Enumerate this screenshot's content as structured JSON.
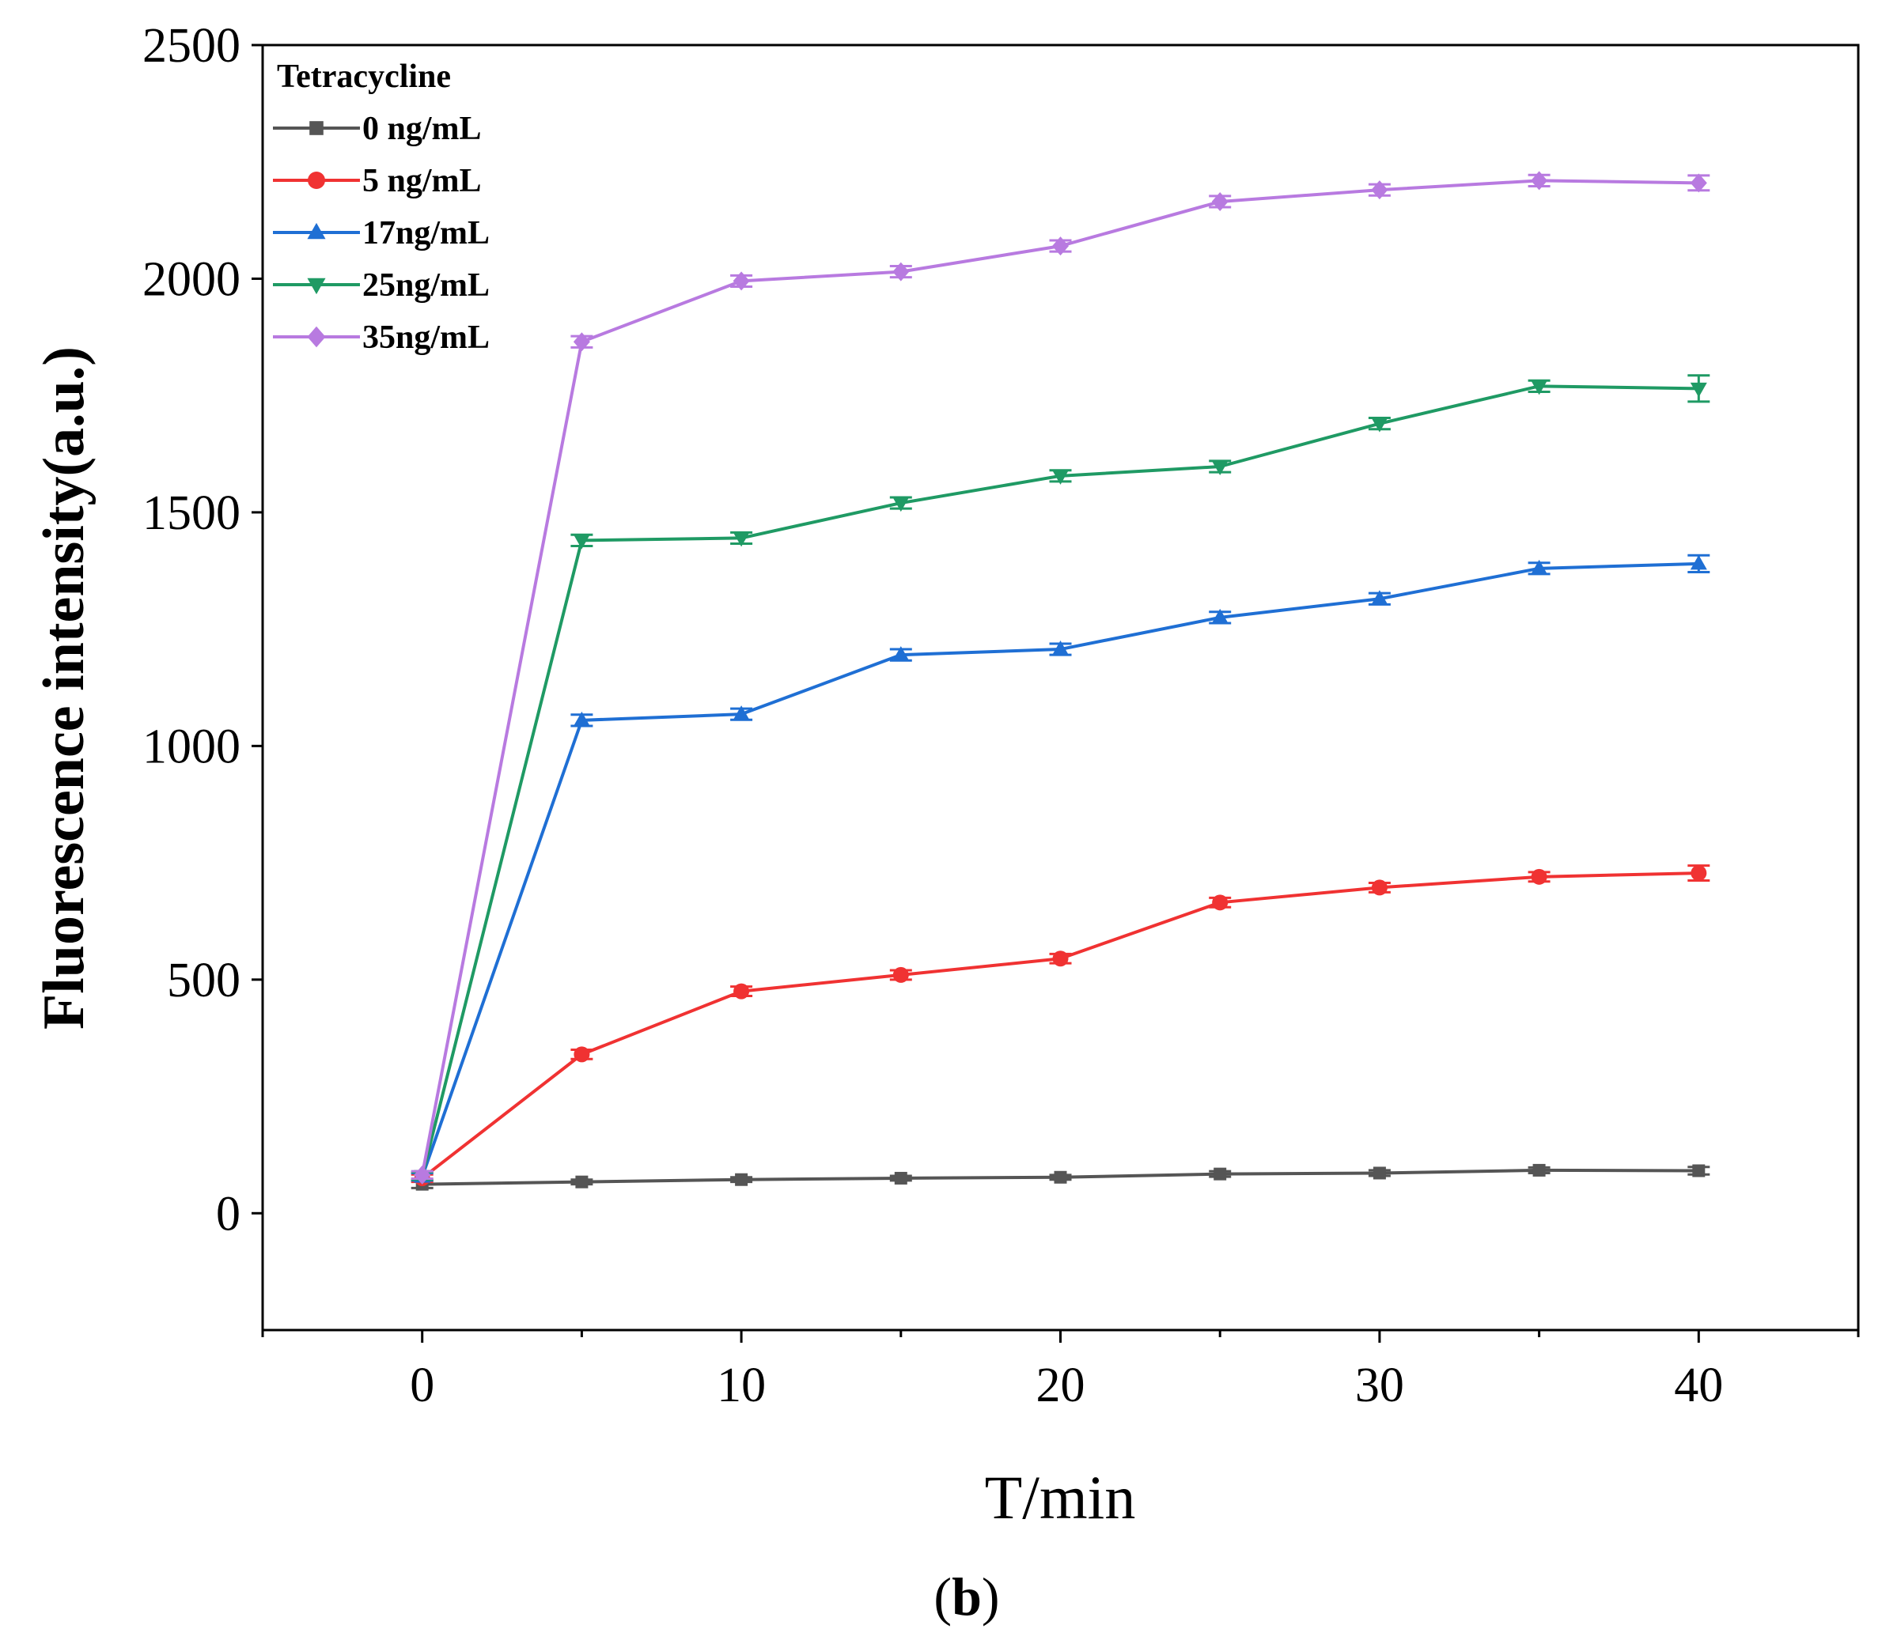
{
  "chart_data": {
    "type": "line",
    "title": "",
    "xlabel": "T/min",
    "ylabel": "Fluorescence intensity(a.u.)",
    "xlim": [
      -5,
      45
    ],
    "ylim": [
      -250,
      2500
    ],
    "x_ticks": [
      0,
      10,
      20,
      30,
      40
    ],
    "y_ticks": [
      0,
      500,
      1000,
      1500,
      2000,
      2500
    ],
    "x_tick_labels": [
      "0",
      "10",
      "20",
      "30",
      "40"
    ],
    "y_tick_labels": [
      "0",
      "500",
      "1000",
      "1500",
      "2000",
      "2500"
    ],
    "legend_title": "Tetracycline",
    "legend_position": "top-left",
    "panel_label_open": "(",
    "panel_label_letter": "b",
    "panel_label_close": ")",
    "x": [
      0,
      5,
      10,
      15,
      20,
      25,
      30,
      35,
      40
    ],
    "series": [
      {
        "name": "0 ng/mL",
        "color": "#555555",
        "marker": "square",
        "values": [
          62,
          67,
          72,
          75,
          77,
          84,
          86,
          92,
          91
        ],
        "errors": [
          8,
          5,
          5,
          5,
          5,
          6,
          6,
          6,
          8
        ]
      },
      {
        "name": "5 ng/mL",
        "color": "#f03232",
        "marker": "circle",
        "values": [
          75,
          340,
          475,
          510,
          545,
          665,
          697,
          720,
          728
        ],
        "errors": [
          8,
          10,
          10,
          10,
          10,
          10,
          10,
          10,
          16
        ]
      },
      {
        "name": "17ng/mL",
        "color": "#1f6fd4",
        "marker": "triangle-up",
        "values": [
          78,
          1055,
          1068,
          1195,
          1207,
          1275,
          1315,
          1380,
          1390
        ],
        "errors": [
          8,
          12,
          12,
          12,
          12,
          12,
          12,
          12,
          18
        ]
      },
      {
        "name": "25ng/mL",
        "color": "#1f9a64",
        "marker": "triangle-down",
        "values": [
          80,
          1440,
          1445,
          1520,
          1578,
          1598,
          1690,
          1770,
          1765
        ],
        "errors": [
          8,
          12,
          12,
          12,
          12,
          12,
          12,
          12,
          28
        ]
      },
      {
        "name": "35ng/mL",
        "color": "#b87ae0",
        "marker": "diamond",
        "values": [
          82,
          1865,
          1995,
          2015,
          2070,
          2165,
          2190,
          2210,
          2205
        ],
        "errors": [
          8,
          12,
          12,
          12,
          12,
          12,
          12,
          12,
          16
        ]
      }
    ]
  }
}
